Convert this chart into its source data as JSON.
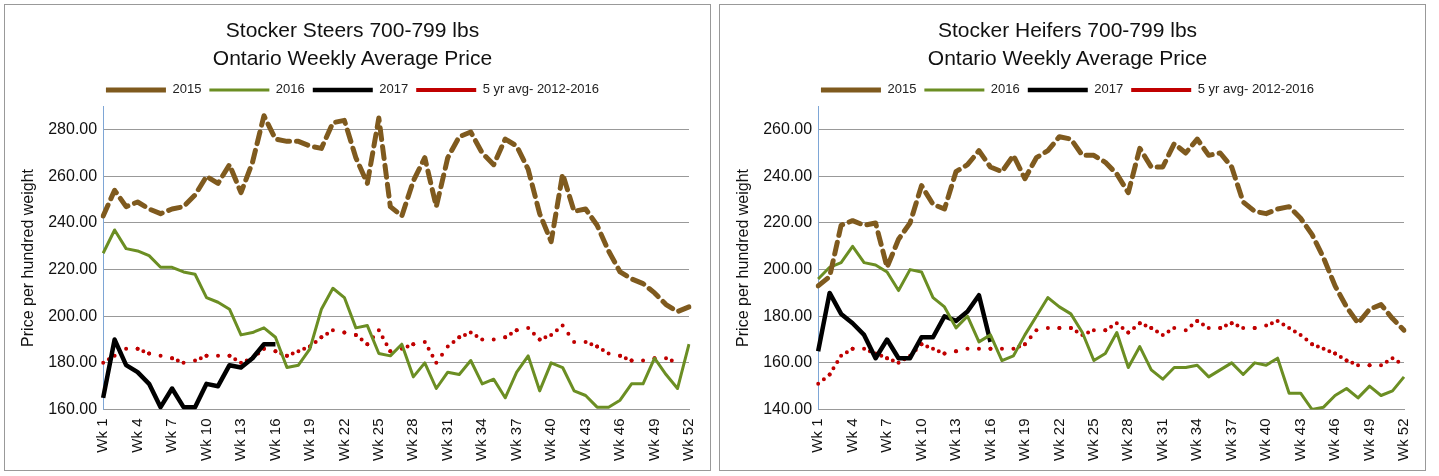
{
  "chart_data": [
    {
      "type": "line",
      "title": "Stocker Steers 700-799 lbs",
      "subtitle": "Ontario Weekly Average Price",
      "ylabel": "Price per hundred weight",
      "categories": [
        "Wk 1",
        null,
        null,
        "Wk 4",
        null,
        null,
        "Wk 7",
        null,
        null,
        "Wk 10",
        null,
        null,
        "Wk 13",
        null,
        null,
        "Wk 16",
        null,
        null,
        "Wk 19",
        null,
        null,
        "Wk 22",
        null,
        null,
        "Wk 25",
        null,
        null,
        "Wk 28",
        null,
        null,
        "Wk 31",
        null,
        null,
        "Wk 34",
        null,
        null,
        "Wk 37",
        null,
        null,
        "Wk 40",
        null,
        null,
        "Wk 43",
        null,
        null,
        "Wk 46",
        null,
        null,
        "Wk 49",
        null,
        null,
        "Wk 52"
      ],
      "series": [
        {
          "name": "2015",
          "color": "#7f5a1e",
          "line_style": "dashed",
          "values": [
            243,
            254,
            247,
            249,
            246,
            244,
            246,
            247,
            252,
            260,
            257,
            265,
            253,
            266,
            286,
            276,
            275,
            275,
            273,
            272,
            283,
            284,
            268,
            257,
            285,
            247,
            243,
            258,
            268,
            247,
            268,
            277,
            279,
            270,
            265,
            276,
            273,
            263,
            244,
            232,
            261,
            245,
            246,
            239,
            228,
            219,
            216,
            214,
            210,
            205,
            202,
            204
          ]
        },
        {
          "name": "2016",
          "color": "#6b8e23",
          "line_style": "solid",
          "values": [
            227,
            237,
            229,
            228,
            226,
            221,
            221,
            219,
            218,
            208,
            206,
            203,
            192,
            193,
            195,
            191,
            178,
            179,
            186,
            203,
            212,
            208,
            195,
            196,
            184,
            183,
            188,
            174,
            180,
            169,
            176,
            175,
            181,
            171,
            173,
            165,
            176,
            183,
            168,
            180,
            178,
            168,
            166,
            161,
            161,
            164,
            171,
            171,
            182,
            175,
            169,
            188
          ]
        },
        {
          "name": "2017",
          "color": "#000000",
          "line_style": "solid",
          "values": [
            165,
            190,
            179,
            176,
            171,
            161,
            169,
            161,
            161,
            171,
            170,
            179,
            178,
            182,
            188,
            188,
            null,
            null,
            null,
            null,
            null,
            null,
            null,
            null,
            null,
            null,
            null,
            null,
            null,
            null,
            null,
            null,
            null,
            null,
            null,
            null,
            null,
            null,
            null,
            null,
            null,
            null,
            null,
            null,
            null,
            null,
            null,
            null,
            null,
            null,
            null,
            null
          ]
        },
        {
          "name": "5 yr avg- 2012-2016",
          "color": "#c00000",
          "line_style": "dotted",
          "values": [
            180,
            183,
            186,
            186,
            184,
            183,
            182,
            180,
            181,
            183,
            183,
            183,
            180,
            182,
            186,
            185,
            183,
            185,
            187,
            191,
            194,
            193,
            192,
            188,
            194,
            185,
            186,
            188,
            189,
            180,
            187,
            191,
            193,
            190,
            190,
            191,
            194,
            195,
            190,
            192,
            196,
            189,
            189,
            187,
            184,
            183,
            181,
            181,
            182,
            182,
            180,
            null
          ]
        }
      ],
      "ylim": [
        160,
        290
      ],
      "yticks": [
        {
          "value": 160,
          "label": "160.00"
        },
        {
          "value": 180,
          "label": "180.00"
        },
        {
          "value": 200,
          "label": "200.00"
        },
        {
          "value": 220,
          "label": "220.00"
        },
        {
          "value": 240,
          "label": "240.00"
        },
        {
          "value": 260,
          "label": "260.00"
        },
        {
          "value": 280,
          "label": "280.00"
        }
      ],
      "grid": "y",
      "legend": "top",
      "marker": "none"
    },
    {
      "type": "line",
      "title": "Stocker Heifers 700-799 lbs",
      "subtitle": "Ontario Weekly Average Price",
      "ylabel": "Price per hundred weight",
      "categories": [
        "Wk 1",
        null,
        null,
        "Wk 4",
        null,
        null,
        "Wk 7",
        null,
        null,
        "Wk 10",
        null,
        null,
        "Wk 13",
        null,
        null,
        "Wk 16",
        null,
        null,
        "Wk 19",
        null,
        null,
        "Wk 22",
        null,
        null,
        "Wk 25",
        null,
        null,
        "Wk 28",
        null,
        null,
        "Wk 31",
        null,
        null,
        "Wk 34",
        null,
        null,
        "Wk 37",
        null,
        null,
        "Wk 40",
        null,
        null,
        "Wk 43",
        null,
        null,
        "Wk 46",
        null,
        null,
        "Wk 49",
        null,
        null,
        "Wk 52"
      ],
      "series": [
        {
          "name": "2015",
          "color": "#7f5a1e",
          "line_style": "dashed",
          "values": [
            193,
            197,
            219,
            221,
            219,
            220,
            201,
            213,
            220,
            236,
            228,
            226,
            242,
            245,
            251,
            244,
            242,
            249,
            239,
            248,
            251,
            257,
            256,
            249,
            249,
            246,
            241,
            233,
            252,
            244,
            244,
            254,
            250,
            256,
            249,
            250,
            244,
            229,
            225,
            224,
            226,
            227,
            222,
            215,
            205,
            193,
            184,
            177,
            183,
            185,
            179,
            174
          ]
        },
        {
          "name": "2016",
          "color": "#6b8e23",
          "line_style": "solid",
          "values": [
            196,
            201,
            203,
            210,
            203,
            202,
            199,
            191,
            200,
            199,
            188,
            184,
            175,
            180,
            169,
            172,
            161,
            163,
            172,
            180,
            188,
            184,
            181,
            173,
            161,
            164,
            173,
            158,
            167,
            157,
            153,
            158,
            158,
            159,
            154,
            157,
            160,
            155,
            160,
            159,
            162,
            147,
            147,
            140,
            141,
            146,
            149,
            145,
            150,
            146,
            148,
            154
          ]
        },
        {
          "name": "2017",
          "color": "#000000",
          "line_style": "solid",
          "values": [
            165,
            190,
            181,
            177,
            172,
            162,
            170,
            162,
            162,
            171,
            171,
            180,
            178,
            182,
            189,
            169,
            null,
            null,
            null,
            null,
            null,
            null,
            null,
            null,
            null,
            null,
            null,
            null,
            null,
            null,
            null,
            null,
            null,
            null,
            null,
            null,
            null,
            null,
            null,
            null,
            null,
            null,
            null,
            null,
            null,
            null,
            null,
            null,
            null,
            null,
            null,
            null
          ]
        },
        {
          "name": "5 yr avg- 2012-2016",
          "color": "#c00000",
          "line_style": "dotted",
          "values": [
            151,
            155,
            163,
            166,
            166,
            164,
            162,
            160,
            163,
            168,
            166,
            164,
            165,
            166,
            166,
            166,
            166,
            166,
            168,
            174,
            175,
            175,
            175,
            172,
            174,
            174,
            177,
            173,
            177,
            175,
            172,
            175,
            174,
            178,
            175,
            175,
            177,
            175,
            175,
            176,
            178,
            175,
            172,
            168,
            166,
            164,
            161,
            159,
            159,
            159,
            162,
            159
          ]
        }
      ],
      "ylim": [
        140,
        270
      ],
      "yticks": [
        {
          "value": 140,
          "label": "140.00"
        },
        {
          "value": 160,
          "label": "160.00"
        },
        {
          "value": 180,
          "label": "180.00"
        },
        {
          "value": 200,
          "label": "200.00"
        },
        {
          "value": 220,
          "label": "220.00"
        },
        {
          "value": 240,
          "label": "240.00"
        },
        {
          "value": 260,
          "label": "260.00"
        }
      ],
      "grid": "y",
      "legend": "top",
      "marker": "none"
    }
  ]
}
